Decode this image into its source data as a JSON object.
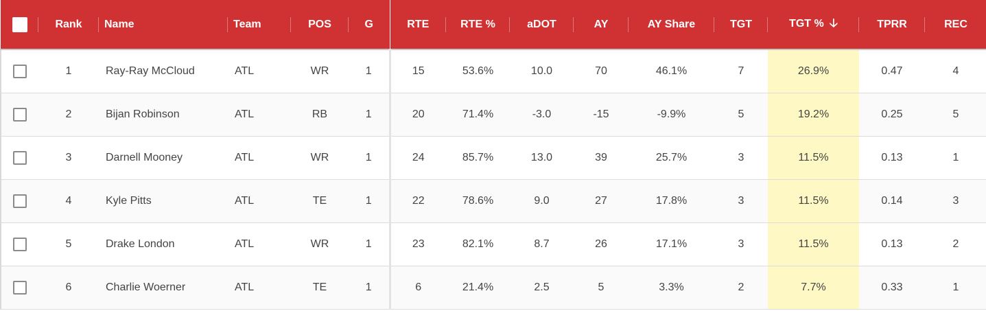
{
  "table": {
    "columns": [
      {
        "key": "select",
        "label": ""
      },
      {
        "key": "rank",
        "label": "Rank"
      },
      {
        "key": "name",
        "label": "Name"
      },
      {
        "key": "team",
        "label": "Team"
      },
      {
        "key": "pos",
        "label": "POS"
      },
      {
        "key": "g",
        "label": "G"
      },
      {
        "key": "rte",
        "label": "RTE"
      },
      {
        "key": "rte_pct",
        "label": "RTE %"
      },
      {
        "key": "adot",
        "label": "aDOT"
      },
      {
        "key": "ay",
        "label": "AY"
      },
      {
        "key": "ay_share",
        "label": "AY Share"
      },
      {
        "key": "tgt",
        "label": "TGT"
      },
      {
        "key": "tgt_pct",
        "label": "TGT %",
        "sort": "descending",
        "sort_icon": "arrow-down-icon"
      },
      {
        "key": "tprr",
        "label": "TPRR"
      },
      {
        "key": "rec",
        "label": "REC"
      }
    ],
    "rows": [
      {
        "rank": "1",
        "name": "Ray-Ray McCloud",
        "team": "ATL",
        "pos": "WR",
        "g": "1",
        "rte": "15",
        "rte_pct": "53.6%",
        "adot": "10.0",
        "ay": "70",
        "ay_share": "46.1%",
        "tgt": "7",
        "tgt_pct": "26.9%",
        "tprr": "0.47",
        "rec": "4"
      },
      {
        "rank": "2",
        "name": "Bijan Robinson",
        "team": "ATL",
        "pos": "RB",
        "g": "1",
        "rte": "20",
        "rte_pct": "71.4%",
        "adot": "-3.0",
        "ay": "-15",
        "ay_share": "-9.9%",
        "tgt": "5",
        "tgt_pct": "19.2%",
        "tprr": "0.25",
        "rec": "5"
      },
      {
        "rank": "3",
        "name": "Darnell Mooney",
        "team": "ATL",
        "pos": "WR",
        "g": "1",
        "rte": "24",
        "rte_pct": "85.7%",
        "adot": "13.0",
        "ay": "39",
        "ay_share": "25.7%",
        "tgt": "3",
        "tgt_pct": "11.5%",
        "tprr": "0.13",
        "rec": "1"
      },
      {
        "rank": "4",
        "name": "Kyle Pitts",
        "team": "ATL",
        "pos": "TE",
        "g": "1",
        "rte": "22",
        "rte_pct": "78.6%",
        "adot": "9.0",
        "ay": "27",
        "ay_share": "17.8%",
        "tgt": "3",
        "tgt_pct": "11.5%",
        "tprr": "0.14",
        "rec": "3"
      },
      {
        "rank": "5",
        "name": "Drake London",
        "team": "ATL",
        "pos": "WR",
        "g": "1",
        "rte": "23",
        "rte_pct": "82.1%",
        "adot": "8.7",
        "ay": "26",
        "ay_share": "17.1%",
        "tgt": "3",
        "tgt_pct": "11.5%",
        "tprr": "0.13",
        "rec": "2"
      },
      {
        "rank": "6",
        "name": "Charlie Woerner",
        "team": "ATL",
        "pos": "TE",
        "g": "1",
        "rte": "6",
        "rte_pct": "21.4%",
        "adot": "2.5",
        "ay": "5",
        "ay_share": "3.3%",
        "tgt": "2",
        "tgt_pct": "7.7%",
        "tprr": "0.33",
        "rec": "1"
      }
    ]
  },
  "colors": {
    "header_bg": "#d03234",
    "header_text": "#ffffff",
    "highlight_col": "#fdf8c4",
    "body_text": "#444444"
  }
}
